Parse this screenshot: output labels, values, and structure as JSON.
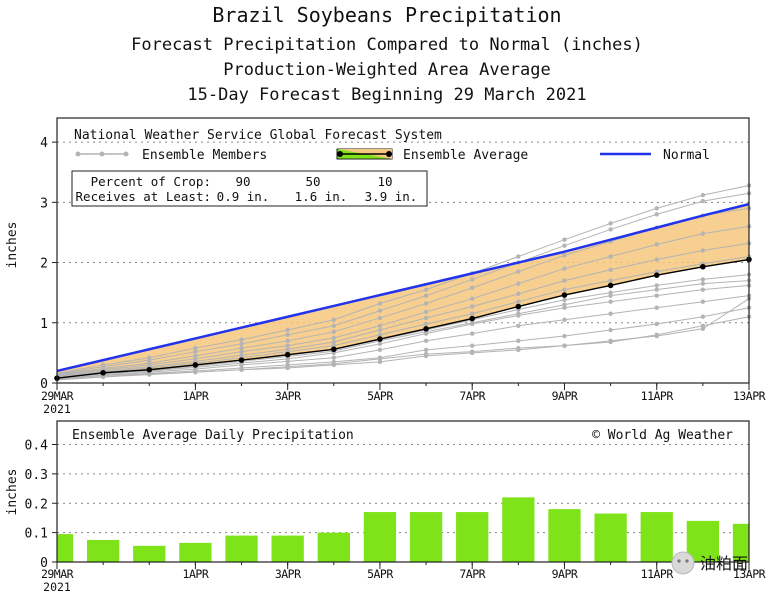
{
  "title_lines": [
    "Brazil Soybeans Precipitation",
    "Forecast Precipitation Compared to Normal (inches)",
    "Production-Weighted Area Average",
    "15-Day Forecast Beginning 29 March 2021"
  ],
  "watermark": "油粕面",
  "chart_data": [
    {
      "type": "line",
      "system_label": "National Weather Service Global Forecast System",
      "ylabel": "inches",
      "ylim": [
        0,
        4.4
      ],
      "yticks": [
        0,
        1,
        2,
        3,
        4
      ],
      "x": [
        0,
        1,
        2,
        3,
        4,
        5,
        6,
        7,
        8,
        9,
        10,
        11,
        12,
        13,
        14,
        15
      ],
      "xtick_positions": [
        0,
        3,
        5,
        7,
        9,
        11,
        13,
        15
      ],
      "xtick_labels": [
        "29MAR",
        "1APR",
        "3APR",
        "5APR",
        "7APR",
        "9APR",
        "11APR",
        "13APR"
      ],
      "x_year": "2021",
      "legend": {
        "members": "Ensemble Members",
        "average": "Ensemble Average",
        "normal": "Normal"
      },
      "percent_table": {
        "row1_label": "Percent of Crop:",
        "row2_label": "Receives at Least:",
        "percents": [
          "90",
          "50",
          "10"
        ],
        "amounts": [
          "0.9 in.",
          "1.6 in.",
          "3.9 in."
        ]
      },
      "series": [
        {
          "name": "Normal",
          "color": "#2233ee",
          "values": [
            0.2,
            0.38,
            0.56,
            0.74,
            0.92,
            1.1,
            1.28,
            1.46,
            1.64,
            1.82,
            2.0,
            2.18,
            2.38,
            2.58,
            2.78,
            2.97
          ]
        },
        {
          "name": "Ensemble Average",
          "color": "#000000",
          "values": [
            0.08,
            0.17,
            0.22,
            0.3,
            0.38,
            0.47,
            0.56,
            0.73,
            0.9,
            1.07,
            1.27,
            1.46,
            1.62,
            1.79,
            1.93,
            2.05
          ]
        },
        {
          "name": "Ensemble Members",
          "color": "#b4b4b4",
          "members": [
            [
              0.05,
              0.1,
              0.15,
              0.18,
              0.22,
              0.25,
              0.3,
              0.35,
              0.45,
              0.5,
              0.55,
              0.62,
              0.68,
              0.8,
              0.95,
              1.1
            ],
            [
              0.07,
              0.12,
              0.16,
              0.2,
              0.25,
              0.3,
              0.35,
              0.42,
              0.55,
              0.62,
              0.7,
              0.78,
              0.88,
              0.98,
              1.1,
              1.25
            ],
            [
              0.08,
              0.13,
              0.18,
              0.23,
              0.3,
              0.36,
              0.42,
              0.55,
              0.7,
              0.82,
              0.95,
              1.05,
              1.15,
              1.25,
              1.35,
              1.45
            ],
            [
              0.09,
              0.15,
              0.2,
              0.26,
              0.33,
              0.4,
              0.5,
              0.65,
              0.82,
              0.98,
              1.12,
              1.25,
              1.35,
              1.45,
              1.55,
              1.62
            ],
            [
              0.1,
              0.17,
              0.22,
              0.3,
              0.38,
              0.46,
              0.56,
              0.72,
              0.88,
              1.05,
              1.22,
              1.38,
              1.5,
              1.62,
              1.72,
              1.8
            ],
            [
              0.11,
              0.18,
              0.25,
              0.33,
              0.42,
              0.52,
              0.62,
              0.8,
              0.98,
              1.15,
              1.35,
              1.55,
              1.7,
              1.85,
              1.98,
              2.1
            ],
            [
              0.12,
              0.2,
              0.27,
              0.36,
              0.46,
              0.56,
              0.68,
              0.88,
              1.08,
              1.27,
              1.48,
              1.7,
              1.88,
              2.05,
              2.2,
              2.32
            ],
            [
              0.13,
              0.22,
              0.3,
              0.4,
              0.52,
              0.62,
              0.75,
              0.95,
              1.18,
              1.4,
              1.65,
              1.9,
              2.1,
              2.3,
              2.48,
              2.6
            ],
            [
              0.14,
              0.24,
              0.33,
              0.45,
              0.58,
              0.7,
              0.85,
              1.08,
              1.32,
              1.58,
              1.85,
              2.12,
              2.35,
              2.58,
              2.78,
              2.9
            ],
            [
              0.15,
              0.27,
              0.38,
              0.52,
              0.65,
              0.8,
              0.95,
              1.2,
              1.45,
              1.72,
              2.0,
              2.28,
              2.55,
              2.8,
              3.02,
              3.15
            ],
            [
              0.16,
              0.3,
              0.42,
              0.58,
              0.72,
              0.88,
              1.05,
              1.32,
              1.55,
              1.82,
              2.1,
              2.38,
              2.65,
              2.9,
              3.12,
              3.28
            ],
            [
              0.06,
              0.1,
              0.14,
              0.18,
              0.22,
              0.27,
              0.32,
              0.4,
              0.48,
              0.52,
              0.58,
              0.62,
              0.7,
              0.78,
              0.9,
              1.4
            ],
            [
              0.09,
              0.16,
              0.21,
              0.28,
              0.36,
              0.44,
              0.53,
              0.7,
              0.85,
              1.0,
              1.15,
              1.3,
              1.45,
              1.55,
              1.65,
              1.7
            ]
          ]
        }
      ]
    },
    {
      "type": "bar",
      "title": "Ensemble Average Daily Precipitation",
      "credit": "© World Ag Weather",
      "ylabel": "inches",
      "ylim": [
        0,
        0.48
      ],
      "yticks": [
        0,
        0.1,
        0.2,
        0.3,
        0.4
      ],
      "ytick_labels": [
        "0",
        "0.1",
        "0.2",
        "0.3",
        "0.4"
      ],
      "color": "#7ee319",
      "x": [
        0,
        1,
        2,
        3,
        4,
        5,
        6,
        7,
        8,
        9,
        10,
        11,
        12,
        13,
        14,
        15
      ],
      "xtick_positions": [
        0,
        3,
        5,
        7,
        9,
        11,
        13,
        15
      ],
      "xtick_labels": [
        "29MAR",
        "1APR",
        "3APR",
        "5APR",
        "7APR",
        "9APR",
        "11APR",
        "13APR"
      ],
      "x_year": "2021",
      "values": [
        0.095,
        0.075,
        0.055,
        0.065,
        0.09,
        0.09,
        0.1,
        0.17,
        0.17,
        0.17,
        0.22,
        0.18,
        0.165,
        0.17,
        0.14,
        0.13
      ]
    }
  ]
}
